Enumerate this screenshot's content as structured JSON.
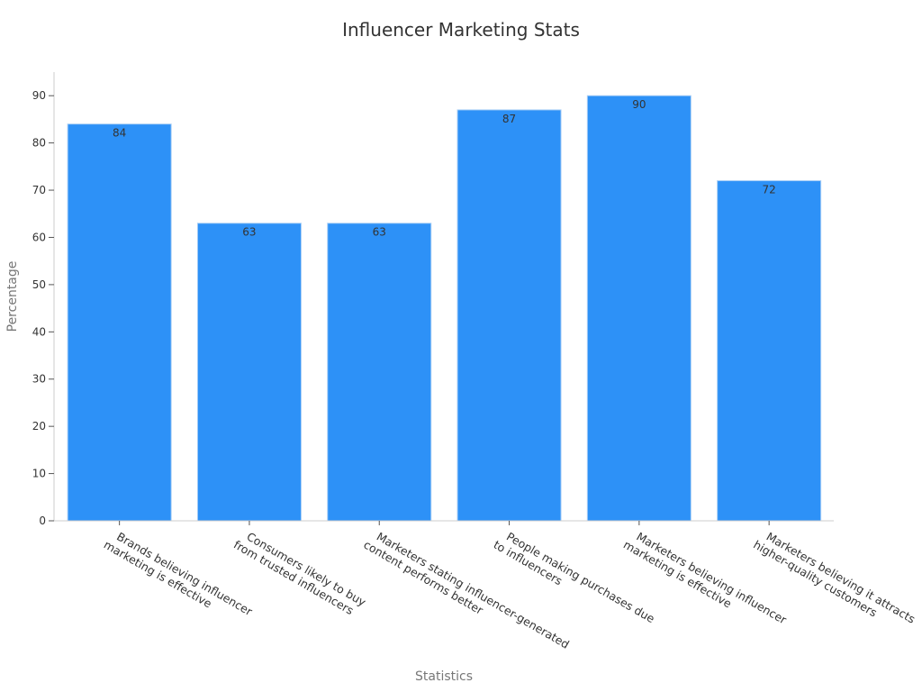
{
  "chart_data": {
    "type": "bar",
    "title": "Influencer Marketing Stats",
    "xlabel": "Statistics",
    "ylabel": "Percentage",
    "categories": [
      [
        "Brands believing influencer",
        "marketing is effective"
      ],
      [
        "Consumers likely to buy",
        "from trusted influencers"
      ],
      [
        "Marketers stating influencer-generated",
        "content performs better"
      ],
      [
        "People making purchases due",
        "to influencers"
      ],
      [
        "Marketers believing influencer",
        "marketing is effective"
      ],
      [
        "Marketers believing it attracts",
        "higher-quality customers"
      ]
    ],
    "values": [
      84,
      63,
      63,
      87,
      90,
      72
    ],
    "ylim": [
      0,
      95
    ],
    "yticks": [
      0,
      10,
      20,
      30,
      40,
      50,
      60,
      70,
      80,
      90
    ],
    "grid": false,
    "bar_color": "#2d91f7",
    "bar_edge_color": "#a8cef5"
  }
}
